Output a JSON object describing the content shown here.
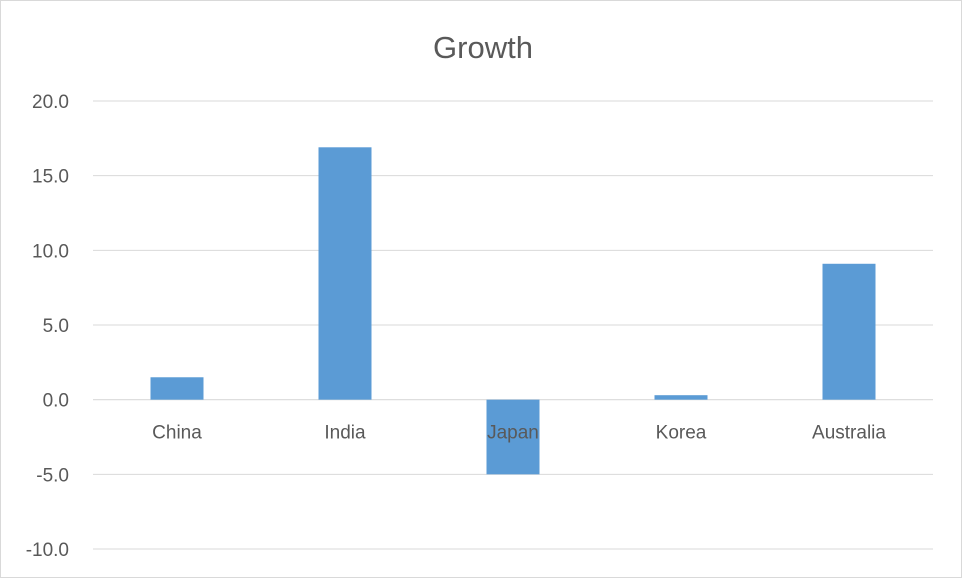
{
  "chart_data": {
    "type": "bar",
    "title": "Growth",
    "xlabel": "",
    "ylabel": "",
    "categories": [
      "China",
      "India",
      "Japan",
      "Korea",
      "Australia"
    ],
    "values": [
      1.5,
      16.9,
      -5.0,
      0.3,
      9.1
    ],
    "ylim": [
      -10,
      20
    ],
    "yticks": [
      20,
      15,
      10,
      5,
      0,
      -5,
      -10
    ],
    "ytick_labels": [
      "20.0",
      "15.0",
      "10.0",
      "5.0",
      "0.0",
      "-5.0",
      "-10.0"
    ],
    "grid": true,
    "legend": "none",
    "bar_color": "#5b9bd5"
  }
}
